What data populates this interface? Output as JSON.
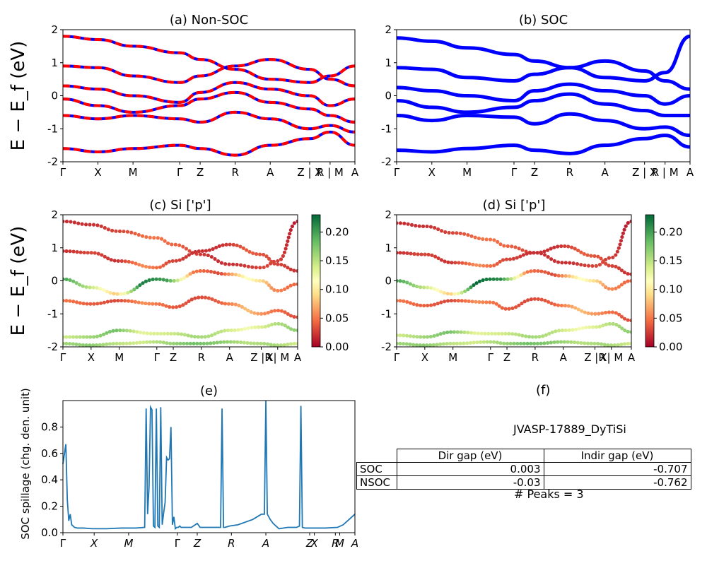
{
  "chart_data": [
    {
      "id": "a",
      "type": "line",
      "title": "(a) Non-SOC",
      "ylabel": "E − E_f (eV)",
      "ylim": [
        -2,
        2
      ],
      "yticks": [
        -2,
        -1,
        0,
        1,
        2
      ],
      "kpath_labels": [
        "Γ",
        "X",
        "M",
        "Γ",
        "Z",
        "R",
        "A",
        "Z | X",
        "R | M",
        "A"
      ],
      "legend": "none",
      "colors": [
        "#ff0000",
        "#0000ff"
      ],
      "style": "dashed red/blue bands",
      "series": [
        {
          "values": [
            1.8,
            1.7,
            1.5,
            1.3,
            1.1,
            0.8,
            0.5,
            0.4,
            0.6,
            0.9
          ]
        },
        {
          "values": [
            0.9,
            0.85,
            0.6,
            0.4,
            0.6,
            0.9,
            1.1,
            0.8,
            0.5,
            0.3
          ]
        },
        {
          "values": [
            0.3,
            0.2,
            0.0,
            -0.2,
            0.1,
            0.4,
            0.2,
            0.0,
            -0.3,
            -0.1
          ]
        },
        {
          "values": [
            -0.1,
            -0.3,
            -0.5,
            -0.3,
            -0.1,
            0.1,
            -0.2,
            -0.4,
            -0.6,
            -0.8
          ]
        },
        {
          "values": [
            -0.6,
            -0.7,
            -0.6,
            -0.7,
            -0.8,
            -0.5,
            -0.7,
            -1.0,
            -0.9,
            -1.1
          ]
        },
        {
          "values": [
            -1.6,
            -1.7,
            -1.6,
            -1.5,
            -1.6,
            -1.8,
            -1.5,
            -1.3,
            -1.1,
            -1.5
          ]
        }
      ]
    },
    {
      "id": "b",
      "type": "line",
      "title": "(b) SOC",
      "ylim": [
        -2,
        2
      ],
      "yticks": [
        -2,
        -1,
        0,
        1,
        2
      ],
      "kpath_labels": [
        "Γ",
        "X",
        "M",
        "Γ",
        "Z",
        "R",
        "A",
        "Z | X",
        "R | M",
        "A"
      ],
      "legend": "none",
      "colors": [
        "#0000ff"
      ],
      "series": [
        {
          "values": [
            1.75,
            1.65,
            1.45,
            1.25,
            1.05,
            0.85,
            0.55,
            0.45,
            0.7,
            1.8
          ]
        },
        {
          "values": [
            0.85,
            0.8,
            0.55,
            0.45,
            0.65,
            0.85,
            1.05,
            0.75,
            0.45,
            0.2
          ]
        },
        {
          "values": [
            0.25,
            0.15,
            0.0,
            -0.15,
            0.15,
            0.35,
            0.15,
            0.0,
            -0.25,
            0.0
          ]
        },
        {
          "values": [
            -0.15,
            -0.35,
            -0.5,
            -0.35,
            -0.15,
            0.05,
            -0.25,
            -0.45,
            -0.6,
            -0.6
          ]
        },
        {
          "values": [
            -0.6,
            -0.75,
            -0.6,
            -0.65,
            -0.85,
            -0.55,
            -0.75,
            -1.0,
            -0.95,
            -1.2
          ]
        },
        {
          "values": [
            -1.65,
            -1.7,
            -1.6,
            -1.5,
            -1.65,
            -1.75,
            -1.5,
            -1.3,
            -1.2,
            -1.55
          ]
        }
      ]
    },
    {
      "id": "c",
      "type": "scatter",
      "title": "(c)  Si ['p']",
      "ylabel": "E − E_f (eV)",
      "ylim": [
        -2,
        2
      ],
      "yticks": [
        -2,
        -1,
        0,
        1,
        2
      ],
      "kpath_labels": [
        "Γ",
        "X",
        "M",
        "Γ",
        "Z",
        "R",
        "A",
        "Z |R",
        "X| M",
        "A"
      ],
      "colorbar": {
        "min": 0.0,
        "max": 0.23,
        "ticks": [
          "0.00",
          "0.05",
          "0.10",
          "0.15",
          "0.20"
        ],
        "colormap": "RdYlGn"
      },
      "series": [
        {
          "values": [
            1.8,
            1.7,
            1.5,
            1.3,
            1.1,
            0.8,
            0.5,
            0.4,
            0.6,
            1.8
          ],
          "weights": [
            0.02,
            0.02,
            0.03,
            0.05,
            0.04,
            0.02,
            0.02,
            0.03,
            0.02,
            0.01
          ]
        },
        {
          "values": [
            0.9,
            0.85,
            0.6,
            0.4,
            0.6,
            0.9,
            1.1,
            0.8,
            0.5,
            0.3
          ],
          "weights": [
            0.02,
            0.03,
            0.02,
            0.06,
            0.03,
            0.02,
            0.02,
            0.04,
            0.03,
            0.02
          ]
        },
        {
          "values": [
            0.05,
            -0.2,
            -0.4,
            0.05,
            0.0,
            0.3,
            0.2,
            0.0,
            -0.3,
            -0.1
          ],
          "weights": [
            0.2,
            0.15,
            0.08,
            0.22,
            0.2,
            0.05,
            0.03,
            0.12,
            0.06,
            0.04
          ]
        },
        {
          "values": [
            -0.6,
            -0.7,
            -0.6,
            -0.7,
            -0.8,
            -0.5,
            -0.7,
            -1.0,
            -0.9,
            -1.1
          ],
          "weights": [
            0.05,
            0.04,
            0.03,
            0.06,
            0.04,
            0.03,
            0.04,
            0.08,
            0.05,
            0.03
          ]
        },
        {
          "values": [
            -1.7,
            -1.7,
            -1.5,
            -1.6,
            -1.6,
            -1.7,
            -1.5,
            -1.4,
            -1.3,
            -1.5
          ],
          "weights": [
            0.14,
            0.16,
            0.18,
            0.13,
            0.14,
            0.16,
            0.15,
            0.12,
            0.15,
            0.17
          ]
        },
        {
          "values": [
            -1.9,
            -1.95,
            -1.9,
            -1.85,
            -1.9,
            -1.9,
            -1.85,
            -1.9,
            -1.95,
            -1.9
          ],
          "weights": [
            0.16,
            0.17,
            0.15,
            0.14,
            0.16,
            0.18,
            0.17,
            0.15,
            0.16,
            0.14
          ]
        }
      ]
    },
    {
      "id": "d",
      "type": "scatter",
      "title": "(d) Si ['p']",
      "ylim": [
        -2,
        2
      ],
      "yticks": [
        -2,
        -1,
        0,
        1,
        2
      ],
      "kpath_labels": [
        "Γ",
        "X",
        "M",
        "Γ",
        "Z",
        "R",
        "A",
        "Z |R",
        "X| M",
        "A"
      ],
      "colorbar": {
        "min": 0.0,
        "max": 0.23,
        "ticks": [
          "0.00",
          "0.05",
          "0.10",
          "0.15",
          "0.20"
        ],
        "colormap": "RdYlGn"
      },
      "series": [
        {
          "values": [
            1.75,
            1.65,
            1.45,
            1.25,
            1.05,
            0.85,
            0.55,
            0.45,
            0.7,
            1.8
          ],
          "weights": [
            0.02,
            0.02,
            0.03,
            0.05,
            0.04,
            0.02,
            0.02,
            0.03,
            0.02,
            0.01
          ]
        },
        {
          "values": [
            0.85,
            0.8,
            0.55,
            0.45,
            0.65,
            0.85,
            1.05,
            0.75,
            0.45,
            0.2
          ],
          "weights": [
            0.02,
            0.03,
            0.02,
            0.06,
            0.03,
            0.02,
            0.02,
            0.04,
            0.03,
            0.02
          ]
        },
        {
          "values": [
            0.0,
            -0.2,
            -0.4,
            0.05,
            0.05,
            0.3,
            0.15,
            0.0,
            -0.25,
            0.0
          ],
          "weights": [
            0.2,
            0.15,
            0.08,
            0.23,
            0.21,
            0.05,
            0.03,
            0.12,
            0.06,
            0.04
          ]
        },
        {
          "values": [
            -0.6,
            -0.75,
            -0.6,
            -0.65,
            -0.85,
            -0.55,
            -0.75,
            -1.0,
            -0.95,
            -1.2
          ],
          "weights": [
            0.05,
            0.04,
            0.03,
            0.06,
            0.04,
            0.03,
            0.04,
            0.08,
            0.05,
            0.03
          ]
        },
        {
          "values": [
            -1.65,
            -1.7,
            -1.55,
            -1.6,
            -1.6,
            -1.7,
            -1.5,
            -1.4,
            -1.3,
            -1.55
          ],
          "weights": [
            0.14,
            0.16,
            0.18,
            0.13,
            0.14,
            0.16,
            0.15,
            0.12,
            0.15,
            0.17
          ]
        },
        {
          "values": [
            -1.9,
            -1.95,
            -1.9,
            -1.85,
            -1.9,
            -1.9,
            -1.85,
            -1.9,
            -1.95,
            -1.9
          ],
          "weights": [
            0.16,
            0.17,
            0.15,
            0.14,
            0.16,
            0.18,
            0.17,
            0.15,
            0.16,
            0.14
          ]
        }
      ]
    },
    {
      "id": "e",
      "type": "line",
      "title": "(e)",
      "ylabel": "SOC spillage (chg. den. unit)",
      "ylim": [
        0,
        1.0
      ],
      "yticks": [
        0.0,
        0.2,
        0.4,
        0.6,
        0.8
      ],
      "ytick_labels": [
        "0.0",
        "0.2",
        "0.4",
        "0.6",
        "0.8"
      ],
      "kpath_labels": [
        "Γ",
        "X",
        "M",
        "Γ",
        "Z",
        "R",
        "A",
        "Z",
        "X",
        "R",
        "M",
        "A"
      ],
      "kpath_positions": [
        0.0,
        0.107,
        0.225,
        0.392,
        0.46,
        0.577,
        0.695,
        0.845,
        0.861,
        0.933,
        0.948,
        1.0
      ],
      "colors": [
        "#1f77b4"
      ],
      "series": [
        {
          "x": [
            0.0,
            0.01,
            0.015,
            0.02,
            0.025,
            0.03,
            0.04,
            0.05,
            0.07,
            0.1,
            0.15,
            0.2,
            0.25,
            0.28,
            0.285,
            0.29,
            0.295,
            0.3,
            0.305,
            0.31,
            0.315,
            0.32,
            0.325,
            0.33,
            0.335,
            0.34,
            0.345,
            0.35,
            0.355,
            0.36,
            0.365,
            0.37,
            0.375,
            0.38,
            0.385,
            0.39,
            0.395,
            0.4,
            0.405,
            0.41,
            0.42,
            0.44,
            0.46,
            0.47,
            0.48,
            0.5,
            0.54,
            0.545,
            0.55,
            0.555,
            0.57,
            0.6,
            0.65,
            0.68,
            0.69,
            0.695,
            0.7,
            0.71,
            0.72,
            0.74,
            0.77,
            0.8,
            0.81,
            0.815,
            0.82,
            0.83,
            0.86,
            0.9,
            0.94,
            0.96,
            0.98,
            1.0
          ],
          "values": [
            0.52,
            0.67,
            0.25,
            0.09,
            0.14,
            0.06,
            0.04,
            0.035,
            0.035,
            0.03,
            0.03,
            0.035,
            0.035,
            0.04,
            0.94,
            0.14,
            0.35,
            0.95,
            0.93,
            0.05,
            0.04,
            0.94,
            0.05,
            0.04,
            0.95,
            0.06,
            0.15,
            0.23,
            0.57,
            0.55,
            0.56,
            0.8,
            0.06,
            0.12,
            0.03,
            0.04,
            0.04,
            0.05,
            0.04,
            0.04,
            0.04,
            0.04,
            0.07,
            0.04,
            0.04,
            0.04,
            0.04,
            0.94,
            0.04,
            0.04,
            0.05,
            0.06,
            0.1,
            0.14,
            0.14,
            1.0,
            0.14,
            0.1,
            0.07,
            0.03,
            0.04,
            0.04,
            0.05,
            0.96,
            0.04,
            0.035,
            0.035,
            0.035,
            0.04,
            0.06,
            0.1,
            0.14
          ]
        }
      ]
    }
  ],
  "panel_f": {
    "title": "(f)",
    "material": "JVASP-17889_DyTiSi",
    "table": {
      "headers": [
        "",
        "Dir gap (eV)",
        "Indir gap (eV)"
      ],
      "rows": [
        [
          "SOC",
          "0.003",
          "-0.707"
        ],
        [
          "NSOC",
          "-0.03",
          "-0.762"
        ]
      ]
    },
    "peaks_text": "# Peaks = 3"
  }
}
